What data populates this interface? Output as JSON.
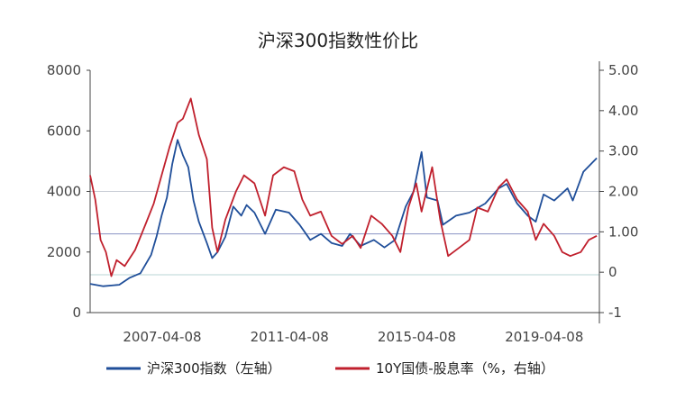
{
  "chart_data": {
    "type": "line",
    "title": "沪深300指数性价比",
    "x_ticks": [
      "2007-04-08",
      "2011-04-08",
      "2015-04-08",
      "2019-04-08"
    ],
    "y_left": {
      "ticks": [
        "0",
        "2000",
        "4000",
        "6000",
        "8000"
      ],
      "ylim": [
        0,
        8000
      ]
    },
    "y_right": {
      "ticks": [
        "-1",
        "0",
        "1.00",
        "2.00",
        "3.00",
        "4.00",
        "5.00"
      ],
      "ylim": [
        -1,
        5
      ]
    },
    "x_range": [
      "2005-01-01",
      "2020-12-31"
    ],
    "grid": "horizontal",
    "reference_lines_left_axis": [
      4000,
      2600,
      1250
    ],
    "legend_position": "bottom",
    "series": [
      {
        "name": "沪深300指数（左轴）",
        "axis": "left",
        "color": "#1f4e99",
        "points": [
          [
            "2005-01-01",
            950
          ],
          [
            "2005-06-01",
            870
          ],
          [
            "2005-12-01",
            920
          ],
          [
            "2006-04-01",
            1150
          ],
          [
            "2006-08-01",
            1300
          ],
          [
            "2006-12-01",
            1900
          ],
          [
            "2007-02-01",
            2500
          ],
          [
            "2007-04-01",
            3200
          ],
          [
            "2007-06-01",
            3800
          ],
          [
            "2007-08-01",
            4900
          ],
          [
            "2007-10-01",
            5700
          ],
          [
            "2007-12-01",
            5200
          ],
          [
            "2008-02-01",
            4800
          ],
          [
            "2008-04-01",
            3700
          ],
          [
            "2008-06-01",
            3000
          ],
          [
            "2008-09-01",
            2300
          ],
          [
            "2008-11-01",
            1800
          ],
          [
            "2009-01-01",
            2000
          ],
          [
            "2009-04-01",
            2500
          ],
          [
            "2009-07-01",
            3500
          ],
          [
            "2009-10-01",
            3200
          ],
          [
            "2009-12-01",
            3550
          ],
          [
            "2010-03-01",
            3300
          ],
          [
            "2010-07-01",
            2600
          ],
          [
            "2010-11-01",
            3400
          ],
          [
            "2011-04-01",
            3300
          ],
          [
            "2011-08-01",
            2900
          ],
          [
            "2011-12-01",
            2400
          ],
          [
            "2012-04-01",
            2600
          ],
          [
            "2012-08-01",
            2300
          ],
          [
            "2012-12-01",
            2200
          ],
          [
            "2013-03-01",
            2600
          ],
          [
            "2013-07-01",
            2200
          ],
          [
            "2013-12-01",
            2400
          ],
          [
            "2014-04-01",
            2150
          ],
          [
            "2014-08-01",
            2400
          ],
          [
            "2014-12-01",
            3500
          ],
          [
            "2015-03-01",
            4000
          ],
          [
            "2015-06-01",
            5300
          ],
          [
            "2015-08-01",
            3800
          ],
          [
            "2015-12-01",
            3700
          ],
          [
            "2016-02-01",
            2900
          ],
          [
            "2016-07-01",
            3200
          ],
          [
            "2016-12-01",
            3300
          ],
          [
            "2017-06-01",
            3600
          ],
          [
            "2017-11-01",
            4100
          ],
          [
            "2018-02-01",
            4250
          ],
          [
            "2018-06-01",
            3600
          ],
          [
            "2018-10-01",
            3200
          ],
          [
            "2019-01-01",
            3000
          ],
          [
            "2019-04-01",
            3900
          ],
          [
            "2019-08-01",
            3700
          ],
          [
            "2020-01-01",
            4100
          ],
          [
            "2020-03-01",
            3700
          ],
          [
            "2020-07-01",
            4650
          ],
          [
            "2020-12-01",
            5100
          ]
        ]
      },
      {
        "name": "10Y国债-股息率（%，右轴）",
        "axis": "right",
        "color": "#c0202d",
        "points": [
          [
            "2005-01-01",
            2.4
          ],
          [
            "2005-03-01",
            1.8
          ],
          [
            "2005-05-01",
            0.8
          ],
          [
            "2005-07-01",
            0.5
          ],
          [
            "2005-09-01",
            -0.1
          ],
          [
            "2005-11-01",
            0.3
          ],
          [
            "2006-02-01",
            0.15
          ],
          [
            "2006-06-01",
            0.55
          ],
          [
            "2006-10-01",
            1.2
          ],
          [
            "2007-01-01",
            1.7
          ],
          [
            "2007-04-01",
            2.4
          ],
          [
            "2007-07-01",
            3.1
          ],
          [
            "2007-10-01",
            3.7
          ],
          [
            "2007-12-01",
            3.8
          ],
          [
            "2008-03-01",
            4.3
          ],
          [
            "2008-06-01",
            3.4
          ],
          [
            "2008-09-01",
            2.8
          ],
          [
            "2008-11-01",
            1.1
          ],
          [
            "2009-01-01",
            0.5
          ],
          [
            "2009-04-01",
            1.3
          ],
          [
            "2009-08-01",
            2.0
          ],
          [
            "2009-11-01",
            2.4
          ],
          [
            "2010-03-01",
            2.2
          ],
          [
            "2010-07-01",
            1.4
          ],
          [
            "2010-10-01",
            2.4
          ],
          [
            "2011-02-01",
            2.6
          ],
          [
            "2011-06-01",
            2.5
          ],
          [
            "2011-09-01",
            1.8
          ],
          [
            "2011-12-01",
            1.4
          ],
          [
            "2012-04-01",
            1.5
          ],
          [
            "2012-08-01",
            0.9
          ],
          [
            "2012-12-01",
            0.7
          ],
          [
            "2013-04-01",
            0.9
          ],
          [
            "2013-07-01",
            0.6
          ],
          [
            "2013-11-01",
            1.4
          ],
          [
            "2014-03-01",
            1.2
          ],
          [
            "2014-07-01",
            0.9
          ],
          [
            "2014-10-01",
            0.5
          ],
          [
            "2015-01-01",
            1.6
          ],
          [
            "2015-04-01",
            2.2
          ],
          [
            "2015-06-01",
            1.5
          ],
          [
            "2015-10-01",
            2.6
          ],
          [
            "2016-01-01",
            1.3
          ],
          [
            "2016-04-01",
            0.4
          ],
          [
            "2016-08-01",
            0.6
          ],
          [
            "2016-12-01",
            0.8
          ],
          [
            "2017-03-01",
            1.6
          ],
          [
            "2017-07-01",
            1.5
          ],
          [
            "2017-11-01",
            2.1
          ],
          [
            "2018-02-01",
            2.3
          ],
          [
            "2018-06-01",
            1.8
          ],
          [
            "2018-10-01",
            1.5
          ],
          [
            "2019-01-01",
            0.8
          ],
          [
            "2019-04-01",
            1.2
          ],
          [
            "2019-08-01",
            0.9
          ],
          [
            "2019-11-01",
            0.5
          ],
          [
            "2020-02-01",
            0.4
          ],
          [
            "2020-06-01",
            0.5
          ],
          [
            "2020-09-01",
            0.8
          ],
          [
            "2020-12-01",
            0.9
          ]
        ]
      }
    ]
  }
}
